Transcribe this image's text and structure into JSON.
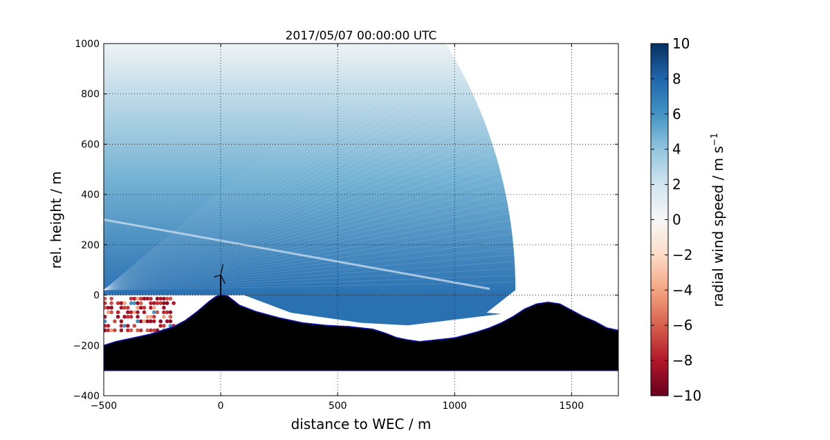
{
  "chart_data": {
    "type": "heatmap",
    "title": "2017/05/07 00:00:00 UTC",
    "xlabel": "distance to WEC / m",
    "ylabel": "rel. height / m",
    "xlim": [
      -500,
      1700
    ],
    "ylim": [
      -400,
      1000
    ],
    "xticks": [
      -500,
      0,
      500,
      1000,
      1500
    ],
    "yticks": [
      -400,
      -200,
      0,
      200,
      400,
      600,
      800,
      1000
    ],
    "x_tick_labels": [
      "−500",
      "0",
      "500",
      "1000",
      "1500"
    ],
    "y_tick_labels": [
      "−400",
      "−200",
      "0",
      "200",
      "400",
      "600",
      "800",
      "1000"
    ],
    "grid": true,
    "colorbar": {
      "label": "radial wind speed / m s",
      "label_superscript": "−1",
      "range": [
        -10,
        10
      ],
      "ticks": [
        10,
        8,
        6,
        4,
        2,
        0,
        -2,
        -4,
        -6,
        -8,
        -10
      ],
      "tick_labels": [
        "10",
        "8",
        "6",
        "4",
        "2",
        "0",
        "−2",
        "−4",
        "−6",
        "−8",
        "−10"
      ],
      "colormap": "RdBu",
      "colors": [
        "#67001f",
        "#b2182b",
        "#d6604d",
        "#f4a582",
        "#fddbc7",
        "#f7f7f7",
        "#d1e5f0",
        "#92c5de",
        "#4393c3",
        "#2166ac",
        "#053061"
      ]
    },
    "lidar_sector": {
      "apex": [
        -500,
        20
      ],
      "max_range_m": 1760,
      "elevation_deg": [
        0,
        38
      ],
      "speed_near_ground": 7.5,
      "speed_aloft": 0.5,
      "negative_speed_patch": {
        "x": [
          -500,
          -200
        ],
        "y": [
          -150,
          0
        ]
      }
    },
    "terrain": {
      "x": [
        -500,
        -450,
        -400,
        -350,
        -300,
        -250,
        -200,
        -150,
        -100,
        -50,
        -20,
        0,
        30,
        80,
        150,
        250,
        350,
        450,
        550,
        650,
        700,
        750,
        800,
        850,
        900,
        1000,
        1050,
        1100,
        1150,
        1200,
        1250,
        1300,
        1350,
        1400,
        1450,
        1500,
        1550,
        1600,
        1650,
        1700
      ],
      "y": [
        -200,
        -185,
        -175,
        -165,
        -155,
        -140,
        -125,
        -100,
        -65,
        -25,
        -5,
        0,
        -3,
        -40,
        -65,
        -90,
        -110,
        -120,
        -125,
        -135,
        -150,
        -168,
        -178,
        -185,
        -180,
        -170,
        -158,
        -145,
        -130,
        -110,
        -85,
        -55,
        -35,
        -28,
        -35,
        -60,
        -85,
        -105,
        -130,
        -140
      ],
      "base_y": -300,
      "fill": "#000000",
      "outline": "#1414b4"
    },
    "wec": {
      "x": 0,
      "hub_height": 80,
      "rotor_radius": 45
    }
  }
}
